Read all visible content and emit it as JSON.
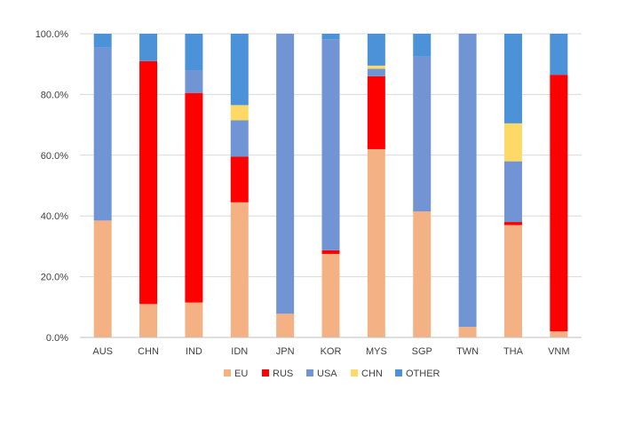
{
  "chart_data": {
    "type": "bar",
    "stacked": true,
    "categories": [
      "AUS",
      "CHN",
      "IND",
      "IDN",
      "JPN",
      "KOR",
      "MYS",
      "SGP",
      "TWN",
      "THA",
      "VNM"
    ],
    "series": [
      {
        "name": "EU",
        "color": "#F4B183",
        "values": [
          38.5,
          11.0,
          11.5,
          44.5,
          7.8,
          27.5,
          62.0,
          41.5,
          3.5,
          37.0,
          2.0
        ]
      },
      {
        "name": "RUS",
        "color": "#FF0000",
        "values": [
          0.0,
          80.0,
          69.0,
          15.0,
          0.0,
          1.2,
          24.0,
          0.0,
          0.0,
          1.0,
          84.5
        ]
      },
      {
        "name": "USA",
        "color": "#7094D4",
        "values": [
          57.0,
          0.0,
          7.5,
          12.0,
          92.2,
          69.5,
          2.5,
          51.0,
          96.5,
          20.0,
          0.0
        ]
      },
      {
        "name": "CHN",
        "color": "#FFD966",
        "values": [
          0.0,
          0.0,
          0.0,
          5.0,
          0.0,
          0.0,
          1.0,
          0.0,
          0.0,
          12.5,
          0.0
        ]
      },
      {
        "name": "OTHER",
        "color": "#4B92D8",
        "values": [
          4.5,
          9.0,
          12.0,
          23.5,
          0.0,
          1.8,
          10.5,
          7.5,
          0.0,
          29.5,
          13.5
        ]
      }
    ],
    "ylim": [
      0,
      100
    ],
    "y_ticks": [
      "0.0%",
      "20.0%",
      "40.0%",
      "60.0%",
      "80.0%",
      "100.0%"
    ],
    "y_tick_values": [
      0,
      20,
      40,
      60,
      80,
      100
    ],
    "grid": true,
    "legend_position": "bottom"
  }
}
